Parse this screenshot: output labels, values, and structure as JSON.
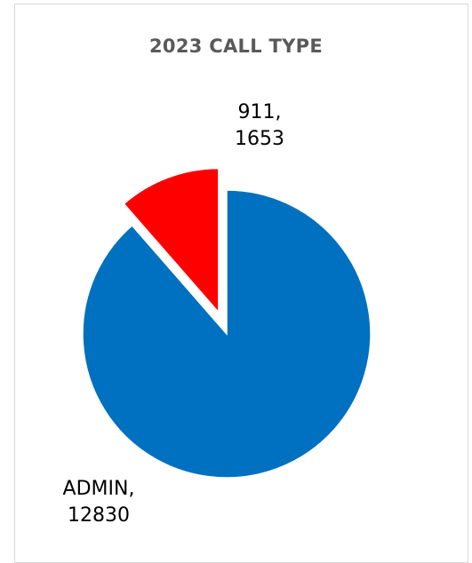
{
  "chart_data": {
    "type": "pie",
    "title": "2023 CALL TYPE",
    "slices": [
      {
        "name": "ADMIN",
        "value": 12830,
        "color": "#0070C0",
        "label_line1": "ADMIN,",
        "label_line2": "12830"
      },
      {
        "name": "911",
        "value": 1653,
        "color": "#FF0000",
        "label_line1": "911,",
        "label_line2": "1653",
        "exploded": true
      }
    ]
  }
}
